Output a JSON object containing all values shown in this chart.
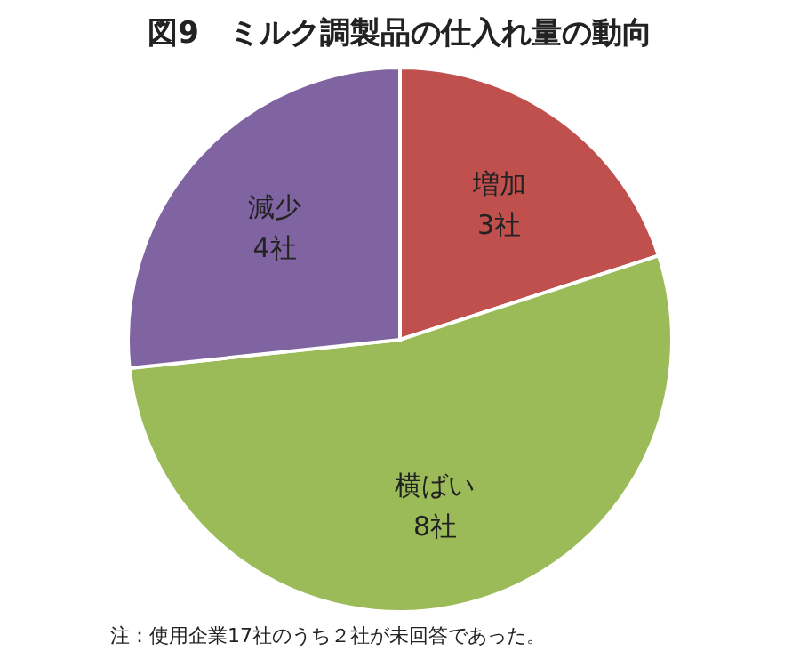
{
  "chart_data": {
    "type": "pie",
    "title": "図9　ミルク調製品の仕入れ量の動向",
    "categories": [
      "増加",
      "横ばい",
      "減少"
    ],
    "values": [
      3,
      8,
      4
    ],
    "value_labels": [
      "3社",
      "8社",
      "4社"
    ],
    "colors": [
      "#c0504d",
      "#9bbb59",
      "#8064a2"
    ],
    "legend": false,
    "annotations": [
      "注：使用企業17社のうち２社が未回答であった。"
    ]
  }
}
